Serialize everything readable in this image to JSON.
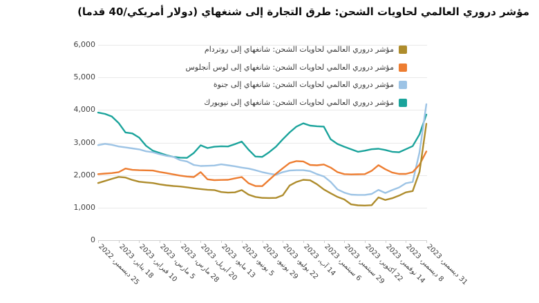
{
  "title": "مؤشر دروري العالمي لحاويات الشحن: طرق التجارة إلى شنغهاي (دولار أمريكي/40 قدما)",
  "chart_data": {
    "type": "line",
    "title": "مؤشر دروري العالمي لحاويات الشحن: طرق التجارة إلى شنغهاي (دولار أمريكي/40 قدما)",
    "unit": "USD per 40ft container",
    "grid": true,
    "legend_position": "top-right-overlay",
    "y_axis": {
      "min": 0,
      "max": 6000,
      "tick_step": 1000,
      "tick_labels": [
        "6,000",
        "5,000",
        "4,000",
        "3,000",
        "2,000",
        "1,000",
        "0"
      ]
    },
    "x_axis": {
      "rotation_deg": 45,
      "tick_every_n_points": 3,
      "tick_labels": [
        "25 ديسمبر، 2022",
        "18 يناير، 2023",
        "10 فبراير، 2023",
        "5 مارس، 2023",
        "28 مارس، 2023",
        "20 أبريل، 2023",
        "13 مايو، 2023",
        "5 يونيو، 2023",
        "29 يونيو، 2023",
        "22 يوليو، 2023",
        "14 آب، 2023",
        "6 سبتمبر، 2023",
        "29 سبتمبر، 2023",
        "22 أكتوبر، 2023",
        "14 نوفمبر، 2023",
        "8 ديسمبر، 2023",
        "31 ديسمبر، 2023"
      ]
    },
    "points_per_series": 49,
    "series": [
      {
        "name": "مؤشر دروري العالمي لحاويات الشحن: شانغهاي إلى روتردام",
        "route": "shanghai-rotterdam",
        "color": "#AE8C2C",
        "values": [
          1755,
          1820,
          1885,
          1945,
          1925,
          1850,
          1795,
          1775,
          1755,
          1715,
          1685,
          1665,
          1650,
          1625,
          1595,
          1570,
          1550,
          1540,
          1480,
          1460,
          1470,
          1540,
          1400,
          1330,
          1300,
          1295,
          1300,
          1380,
          1680,
          1790,
          1855,
          1840,
          1720,
          1560,
          1440,
          1330,
          1250,
          1100,
          1070,
          1065,
          1075,
          1315,
          1235,
          1290,
          1370,
          1470,
          1510,
          2100,
          3577
        ]
      },
      {
        "name": "مؤشر دروري العالمي لحاويات الشحن: شانغهاي إلى لوس أنجلوس",
        "route": "shanghai-los-angeles",
        "color": "#ED7D31",
        "values": [
          2030,
          2045,
          2060,
          2090,
          2200,
          2160,
          2150,
          2145,
          2140,
          2095,
          2060,
          2020,
          1985,
          1955,
          1940,
          2090,
          1870,
          1845,
          1850,
          1855,
          1900,
          1940,
          1750,
          1665,
          1660,
          1850,
          2040,
          2210,
          2370,
          2430,
          2420,
          2310,
          2300,
          2325,
          2230,
          2090,
          2030,
          2020,
          2025,
          2030,
          2130,
          2305,
          2180,
          2080,
          2035,
          2035,
          2090,
          2320,
          2726
        ]
      },
      {
        "name": "مؤشر دروري العالمي لحاويات الشحن: شانغهاي إلى جنوة",
        "route": "shanghai-genoa",
        "color": "#9CC3E5",
        "values": [
          2920,
          2960,
          2930,
          2880,
          2850,
          2820,
          2790,
          2730,
          2700,
          2640,
          2590,
          2560,
          2460,
          2420,
          2310,
          2280,
          2285,
          2295,
          2330,
          2300,
          2270,
          2230,
          2200,
          2150,
          2090,
          2045,
          2010,
          2090,
          2140,
          2150,
          2150,
          2120,
          2030,
          1960,
          1790,
          1560,
          1460,
          1400,
          1390,
          1390,
          1420,
          1545,
          1450,
          1540,
          1620,
          1750,
          1790,
          2700,
          4178
        ]
      },
      {
        "name": "مؤشر دروري العالمي لحاويات الشحن: شانغهاي إلى نيويورك",
        "route": "shanghai-new-york",
        "color": "#1AA39B",
        "values": [
          3920,
          3880,
          3800,
          3600,
          3310,
          3280,
          3150,
          2900,
          2750,
          2680,
          2610,
          2560,
          2535,
          2530,
          2680,
          2915,
          2830,
          2870,
          2885,
          2880,
          2950,
          3030,
          2780,
          2570,
          2560,
          2700,
          2870,
          3100,
          3310,
          3490,
          3590,
          3520,
          3500,
          3490,
          3100,
          2955,
          2870,
          2795,
          2715,
          2750,
          2795,
          2810,
          2770,
          2715,
          2700,
          2795,
          2890,
          3250,
          3858
        ]
      }
    ]
  }
}
